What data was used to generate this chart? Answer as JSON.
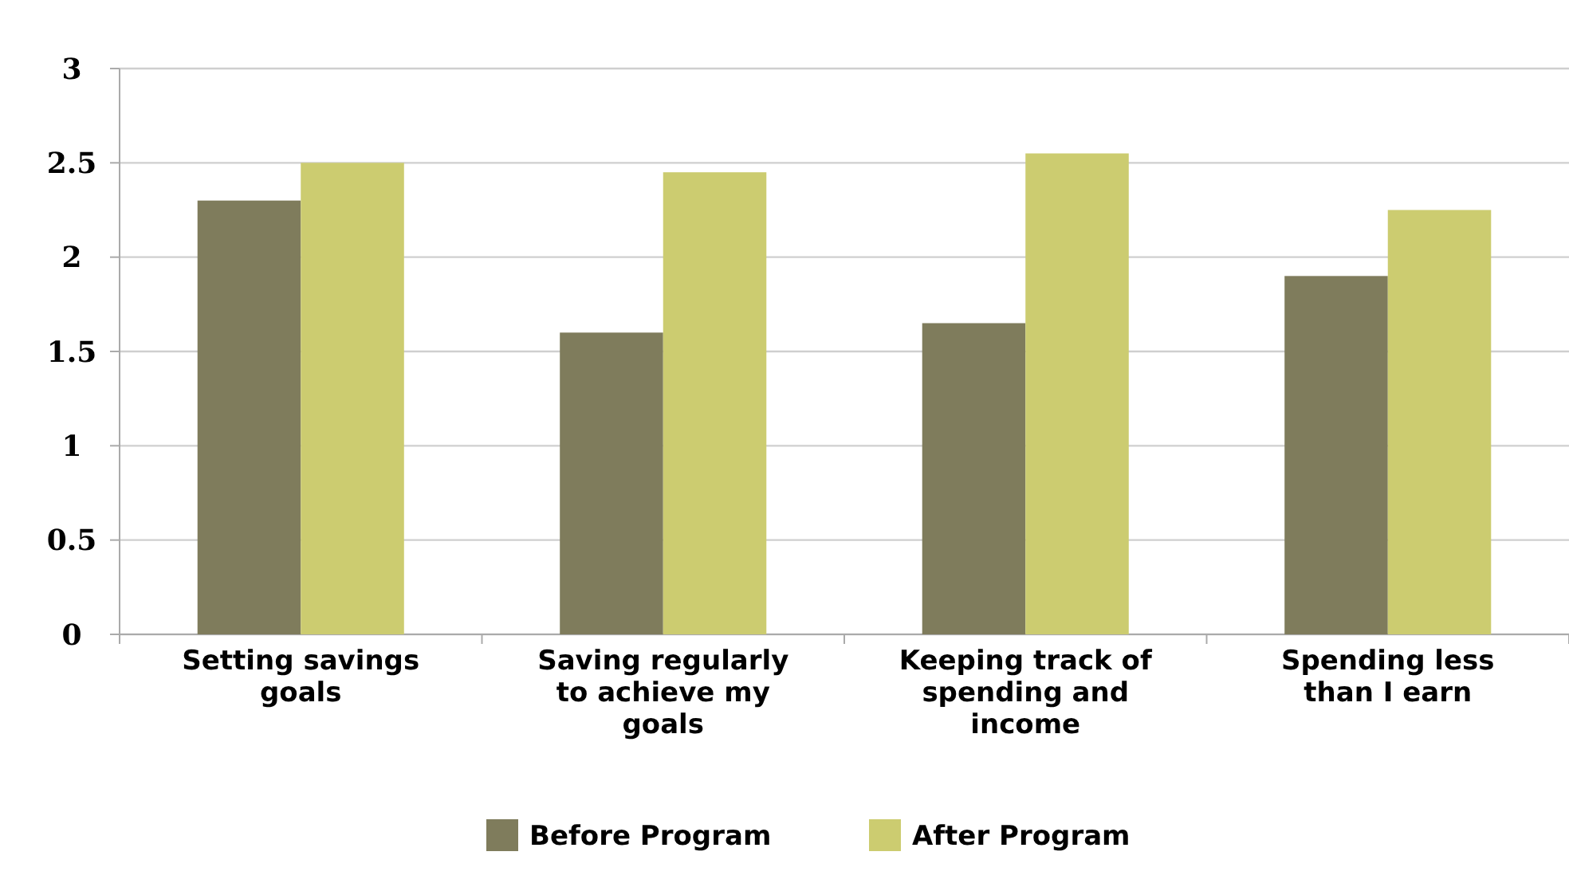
{
  "chart_data": {
    "type": "bar",
    "categories": [
      "Setting savings goals",
      "Saving regularly to achieve my goals",
      "Keeping track of spending and income",
      "Spending less than I earn"
    ],
    "series": [
      {
        "name": "Before Program",
        "color": "#7f7c5c",
        "values": [
          2.3,
          1.6,
          1.65,
          1.9
        ]
      },
      {
        "name": "After Program",
        "color": "#cccc70",
        "values": [
          2.5,
          2.45,
          2.55,
          2.25
        ]
      }
    ],
    "ylim": [
      0,
      3
    ],
    "yticks": [
      0,
      0.5,
      1,
      1.5,
      2,
      2.5,
      3
    ],
    "grid": "y",
    "legend": "bottom"
  }
}
